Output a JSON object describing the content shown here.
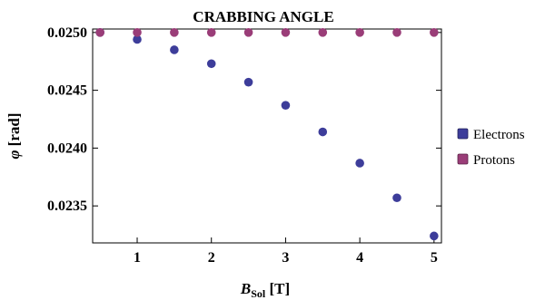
{
  "chart_data": {
    "type": "scatter",
    "title": "CRABBING ANGLE",
    "xlabel": {
      "main": "B",
      "sub": "Sol",
      "unit": " [T]"
    },
    "ylabel": {
      "symbol": "φ",
      "unit": " [rad]"
    },
    "xlim": [
      0.4,
      5.1
    ],
    "ylim": [
      0.02318,
      0.02503
    ],
    "xticks": [
      1,
      2,
      3,
      4,
      5
    ],
    "yticks": [
      0.0235,
      0.024,
      0.0245,
      0.025
    ],
    "ytick_labels": [
      "0.0235",
      "0.0240",
      "0.0245",
      "0.0250"
    ],
    "grid": false,
    "legend_position": "right",
    "series": [
      {
        "name": "Electrons",
        "color": "#3d3d9a",
        "x": [
          0.5,
          1.0,
          1.5,
          2.0,
          2.5,
          3.0,
          3.5,
          4.0,
          4.5,
          5.0
        ],
        "y": [
          0.025,
          0.02494,
          0.02485,
          0.02473,
          0.02457,
          0.02437,
          0.02414,
          0.02387,
          0.02357,
          0.02324
        ]
      },
      {
        "name": "Protons",
        "color": "#9a3d78",
        "x": [
          0.5,
          1.0,
          1.5,
          2.0,
          2.5,
          3.0,
          3.5,
          4.0,
          4.5,
          5.0
        ],
        "y": [
          0.025,
          0.025,
          0.025,
          0.025,
          0.025,
          0.025,
          0.025,
          0.025,
          0.025,
          0.025
        ]
      }
    ]
  }
}
